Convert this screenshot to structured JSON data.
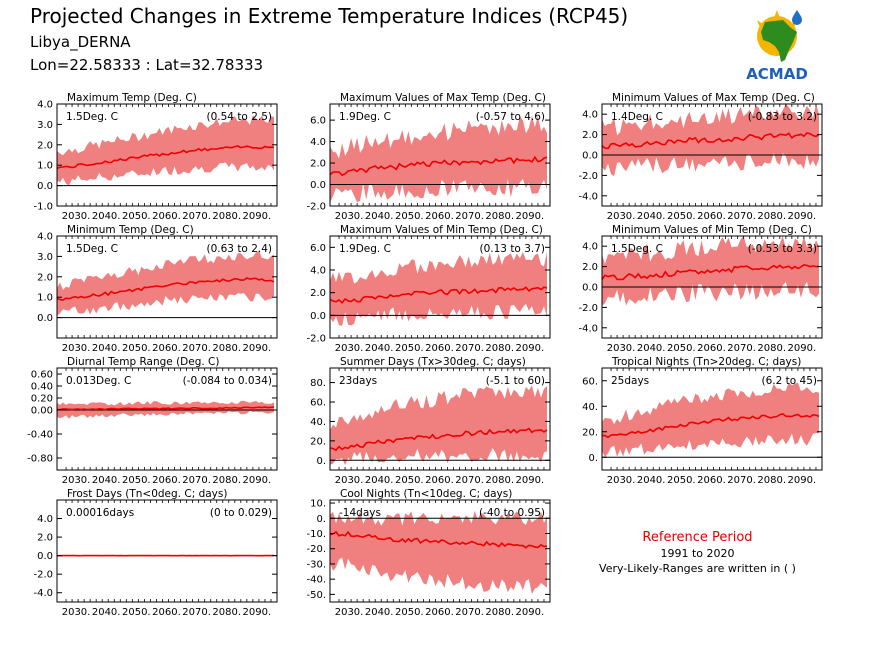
{
  "header": {
    "title": "Projected Changes in Extreme Temperature Indices (RCP45)",
    "location": "Libya_DERNA",
    "coords": "Lon=22.58333 : Lat=32.78333",
    "logo_text": "ACMAD"
  },
  "reference": {
    "title": "Reference Period",
    "years": "1991 to 2020",
    "note": "Very-Likely-Ranges are written in ( )"
  },
  "colors": {
    "band": "#f08080",
    "line": "#ee0000",
    "zero": "#000000",
    "ref_title": "#e00000"
  },
  "chart_data": [
    {
      "type": "area",
      "title": "Maximum Temp (Deg. C)",
      "value_label": "1.5Deg. C",
      "range_label": "(0.54 to 2.5)",
      "x": [
        2030,
        2040,
        2050,
        2060,
        2070,
        2080,
        2090,
        2099
      ],
      "mean": [
        0.9,
        1.1,
        1.3,
        1.5,
        1.7,
        1.8,
        1.9,
        1.9
      ],
      "lower": [
        0.2,
        0.4,
        0.5,
        0.7,
        0.8,
        0.9,
        0.9,
        0.9
      ],
      "upper": [
        1.7,
        2.0,
        2.3,
        2.6,
        2.9,
        3.1,
        3.2,
        3.2
      ],
      "ylim": [
        -1.0,
        4.0
      ],
      "yticks": [
        "-1.0",
        "0.0",
        "1.0",
        "2.0",
        "3.0",
        "4.0"
      ],
      "xticks": [
        "2030.",
        "2040.",
        "2050.",
        "2060.",
        "2070.",
        "2080.",
        "2090."
      ],
      "variability": 0.25
    },
    {
      "type": "area",
      "title": "Maximum Values of Max Temp (Deg. C)",
      "value_label": "1.9Deg. C",
      "range_label": "(-0.57 to 4.6)",
      "x": [
        2030,
        2040,
        2050,
        2060,
        2070,
        2080,
        2090,
        2099
      ],
      "mean": [
        1.0,
        1.4,
        1.7,
        1.9,
        2.1,
        2.2,
        2.3,
        2.3
      ],
      "lower": [
        -0.9,
        -0.7,
        -0.6,
        -0.5,
        -0.4,
        -0.4,
        -0.3,
        -0.3
      ],
      "upper": [
        3.2,
        3.9,
        4.4,
        4.8,
        5.1,
        5.3,
        5.5,
        5.5
      ],
      "ylim": [
        -2.0,
        7.5
      ],
      "yticks": [
        "-2.0",
        "0.0",
        "2.0",
        "4.0",
        "6.0"
      ],
      "xticks": [
        "2030.",
        "2040.",
        "2050.",
        "2060.",
        "2070.",
        "2080.",
        "2090."
      ],
      "variability": 0.9
    },
    {
      "type": "area",
      "title": "Minimum Values of Max Temp (Deg. C)",
      "value_label": "1.4Deg. C",
      "range_label": "(-0.83 to 3.2)",
      "x": [
        2030,
        2040,
        2050,
        2060,
        2070,
        2080,
        2090,
        2099
      ],
      "mean": [
        0.9,
        1.1,
        1.3,
        1.5,
        1.6,
        1.8,
        1.9,
        2.0
      ],
      "lower": [
        -1.3,
        -1.1,
        -1.0,
        -0.9,
        -0.8,
        -0.7,
        -0.6,
        -0.6
      ],
      "upper": [
        2.7,
        3.1,
        3.4,
        3.6,
        3.9,
        4.0,
        4.2,
        4.2
      ],
      "ylim": [
        -5.0,
        5.0
      ],
      "yticks": [
        "-4.0",
        "-2.0",
        "0.0",
        "2.0",
        "4.0"
      ],
      "xticks": [
        "2030.",
        "2040.",
        "2050.",
        "2060.",
        "2070.",
        "2080.",
        "2090."
      ],
      "variability": 0.9
    },
    {
      "type": "area",
      "title": "Minimum Temp (Deg. C)",
      "value_label": "1.5Deg. C",
      "range_label": "(0.63 to 2.4)",
      "x": [
        2030,
        2040,
        2050,
        2060,
        2070,
        2080,
        2090,
        2099
      ],
      "mean": [
        0.9,
        1.1,
        1.3,
        1.5,
        1.7,
        1.8,
        1.9,
        1.8
      ],
      "lower": [
        0.3,
        0.4,
        0.6,
        0.8,
        0.9,
        1.0,
        1.0,
        0.9
      ],
      "upper": [
        1.6,
        1.9,
        2.2,
        2.5,
        2.8,
        2.9,
        3.1,
        3.0
      ],
      "ylim": [
        -1.0,
        4.0
      ],
      "yticks": [
        "0.0",
        "1.0",
        "2.0",
        "3.0",
        "4.0"
      ],
      "xticks": [
        "2030.",
        "2040.",
        "2050.",
        "2060.",
        "2070.",
        "2080.",
        "2090."
      ],
      "variability": 0.25
    },
    {
      "type": "area",
      "title": "Maximum Values of Min Temp (Deg. C)",
      "value_label": "1.9Deg. C",
      "range_label": "(0.13 to 3.7)",
      "x": [
        2030,
        2040,
        2050,
        2060,
        2070,
        2080,
        2090,
        2099
      ],
      "mean": [
        1.2,
        1.5,
        1.8,
        2.0,
        2.1,
        2.2,
        2.3,
        2.3
      ],
      "lower": [
        -0.3,
        -0.1,
        0.1,
        0.2,
        0.3,
        0.3,
        0.4,
        0.4
      ],
      "upper": [
        3.2,
        3.7,
        4.1,
        4.4,
        4.7,
        4.9,
        5.0,
        5.0
      ],
      "ylim": [
        -2.0,
        7.0
      ],
      "yticks": [
        "-2.0",
        "0.0",
        "2.0",
        "4.0",
        "6.0"
      ],
      "xticks": [
        "2030.",
        "2040.",
        "2050.",
        "2060.",
        "2070.",
        "2080.",
        "2090."
      ],
      "variability": 0.7
    },
    {
      "type": "area",
      "title": "Minimum Values of Min Temp (Deg. C)",
      "value_label": "1.5Deg. C",
      "range_label": "(-0.53 to 3.3)",
      "x": [
        2030,
        2040,
        2050,
        2060,
        2070,
        2080,
        2090,
        2099
      ],
      "mean": [
        0.9,
        1.1,
        1.3,
        1.5,
        1.7,
        1.9,
        2.0,
        2.1
      ],
      "lower": [
        -1.1,
        -0.9,
        -0.7,
        -0.6,
        -0.5,
        -0.4,
        -0.3,
        -0.3
      ],
      "upper": [
        3.0,
        3.3,
        3.6,
        3.9,
        4.1,
        4.3,
        4.5,
        4.5
      ],
      "ylim": [
        -5.0,
        5.0
      ],
      "yticks": [
        "-4.0",
        "-2.0",
        "0.0",
        "2.0",
        "4.0"
      ],
      "xticks": [
        "2030.",
        "2040.",
        "2050.",
        "2060.",
        "2070.",
        "2080.",
        "2090."
      ],
      "variability": 0.9
    },
    {
      "type": "area",
      "title": "Diurnal Temp Range (Deg. C)",
      "value_label": "0.013Deg. C",
      "range_label": "(-0.084 to 0.034)",
      "x": [
        2030,
        2040,
        2050,
        2060,
        2070,
        2080,
        2090,
        2099
      ],
      "mean": [
        0.01,
        0.01,
        0.02,
        0.02,
        0.03,
        0.03,
        0.04,
        0.04
      ],
      "lower": [
        -0.12,
        -0.1,
        -0.08,
        -0.07,
        -0.06,
        -0.05,
        -0.04,
        -0.04
      ],
      "upper": [
        0.1,
        0.1,
        0.11,
        0.12,
        0.12,
        0.13,
        0.13,
        0.13
      ],
      "ylim": [
        -1.0,
        0.7
      ],
      "yticks": [
        "-0.80",
        "-0.40",
        "0.00",
        "0.20",
        "0.40",
        "0.60"
      ],
      "xticks": [
        "2030.",
        "2040.",
        "2050.",
        "2060.",
        "2070.",
        "2080.",
        "2090."
      ],
      "variability": 0.03
    },
    {
      "type": "area",
      "title": "Summer Days (Tx>30deg. C; days)",
      "value_label": "23days",
      "range_label": "(-5.1 to 60)",
      "x": [
        2030,
        2040,
        2050,
        2060,
        2070,
        2080,
        2090,
        2099
      ],
      "mean": [
        12,
        17,
        21,
        24,
        27,
        29,
        31,
        31
      ],
      "lower": [
        2,
        3,
        4,
        4,
        5,
        5,
        5,
        5
      ],
      "upper": [
        38,
        48,
        56,
        62,
        67,
        70,
        72,
        72
      ],
      "ylim": [
        -10,
        95
      ],
      "yticks": [
        "0.",
        "20.",
        "40.",
        "60.",
        "80."
      ],
      "xticks": [
        "2030.",
        "2040.",
        "2050.",
        "2060.",
        "2070.",
        "2080.",
        "2090."
      ],
      "variability": 8
    },
    {
      "type": "area",
      "title": "Tropical Nights (Tn>20deg. C; days)",
      "value_label": "25days",
      "range_label": "(6.2 to 45)",
      "x": [
        2030,
        2040,
        2050,
        2060,
        2070,
        2080,
        2090,
        2099
      ],
      "mean": [
        16,
        20,
        24,
        27,
        30,
        32,
        33,
        33
      ],
      "lower": [
        4,
        6,
        8,
        10,
        12,
        13,
        14,
        14
      ],
      "upper": [
        30,
        36,
        42,
        46,
        50,
        53,
        55,
        55
      ],
      "ylim": [
        -10,
        70
      ],
      "yticks": [
        "0.",
        "20.",
        "40.",
        "60."
      ],
      "xticks": [
        "2030.",
        "2040.",
        "2050.",
        "2060.",
        "2070.",
        "2080.",
        "2090."
      ],
      "variability": 5
    },
    {
      "type": "area",
      "title": "Frost Days (Tn<0deg. C; days)",
      "value_label": "0.00016days",
      "range_label": "(0 to 0.029)",
      "x": [
        2030,
        2040,
        2050,
        2060,
        2070,
        2080,
        2090,
        2099
      ],
      "mean": [
        0.0,
        0.0,
        0.0,
        0.0,
        0.0,
        0.0,
        0.0,
        0.0
      ],
      "lower": [
        0.0,
        0.0,
        0.0,
        0.0,
        0.0,
        0.0,
        0.0,
        0.0
      ],
      "upper": [
        0.03,
        0.03,
        0.03,
        0.03,
        0.03,
        0.03,
        0.03,
        0.03
      ],
      "ylim": [
        -5.0,
        6.0
      ],
      "yticks": [
        "-4.0",
        "-2.0",
        "0.0",
        "2.0",
        "4.0"
      ],
      "xticks": [
        "2030.",
        "2040.",
        "2050.",
        "2060.",
        "2070.",
        "2080.",
        "2090."
      ],
      "variability": 0.02
    },
    {
      "type": "area",
      "title": "Cool Nights (Tn<10deg. C; days)",
      "value_label": "-14days",
      "range_label": "(-40 to 0.95)",
      "x": [
        2030,
        2040,
        2050,
        2060,
        2070,
        2080,
        2090,
        2099
      ],
      "mean": [
        -10,
        -12,
        -14,
        -15,
        -16,
        -17,
        -18,
        -18
      ],
      "lower": [
        -30,
        -34,
        -38,
        -40,
        -42,
        -44,
        -45,
        -45
      ],
      "upper": [
        0,
        0,
        0,
        0,
        0,
        0,
        0,
        0
      ],
      "ylim": [
        -55,
        12
      ],
      "yticks": [
        "-50.",
        "-40.",
        "-30.",
        "-20.",
        "-10.",
        "0.",
        "10."
      ],
      "xticks": [
        "2030.",
        "2040.",
        "2050.",
        "2060.",
        "2070.",
        "2080.",
        "2090."
      ],
      "variability": 5
    }
  ]
}
